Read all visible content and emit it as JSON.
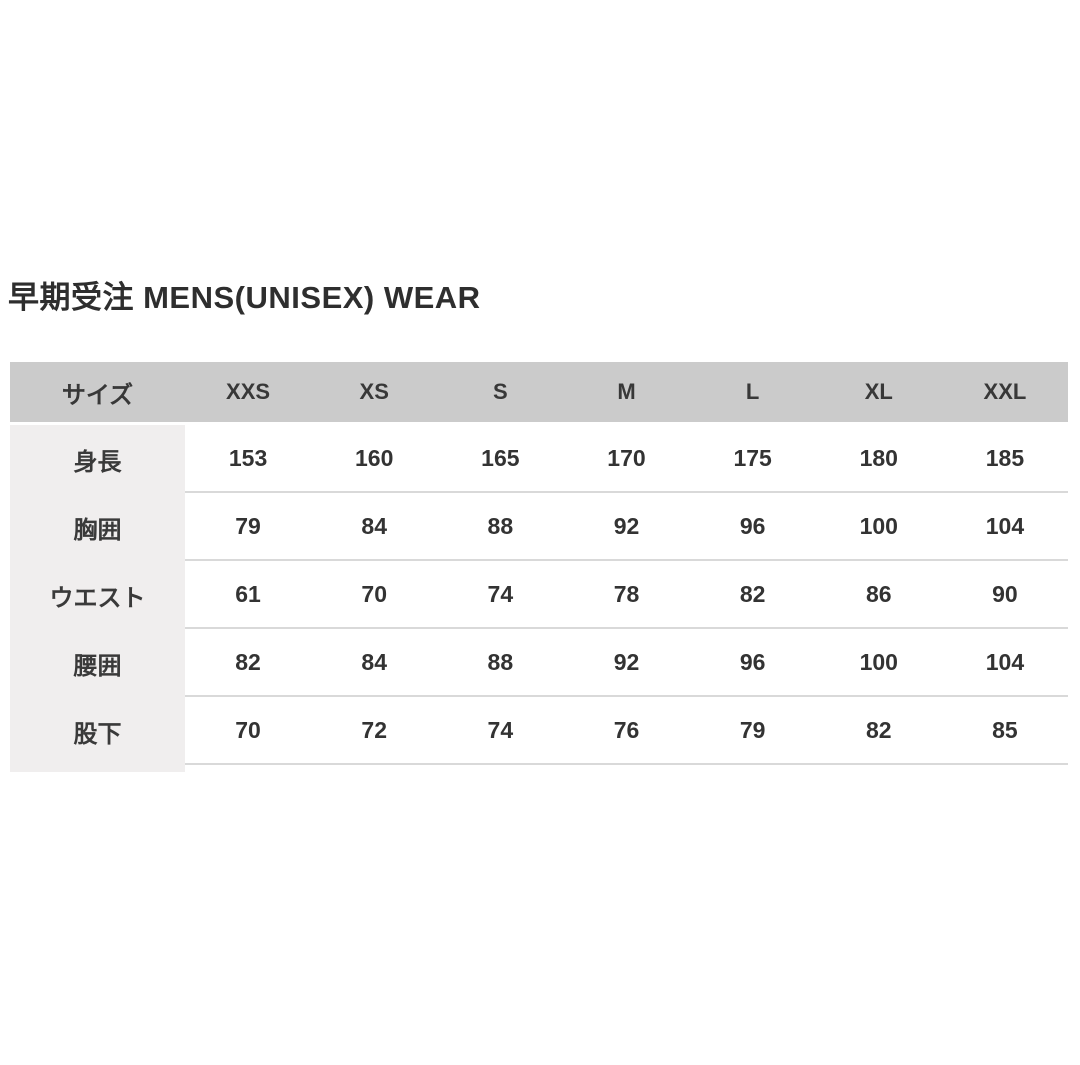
{
  "page": {
    "title": "早期受注 MENS(UNISEX) WEAR"
  },
  "colors": {
    "header_bg": "#cbcbcb",
    "label_column_bg": "#f0eeee",
    "row_divider": "#d9d9d9",
    "text": "#333333",
    "background": "#ffffff"
  },
  "chart_data": {
    "type": "table",
    "title": "早期受注 MENS(UNISEX) WEAR",
    "columns": [
      "サイズ",
      "XXS",
      "XS",
      "S",
      "M",
      "L",
      "XL",
      "XXL"
    ],
    "rows": [
      {
        "label": "身長",
        "values": [
          "153",
          "160",
          "165",
          "170",
          "175",
          "180",
          "185"
        ]
      },
      {
        "label": "胸囲",
        "values": [
          "79",
          "84",
          "88",
          "92",
          "96",
          "100",
          "104"
        ]
      },
      {
        "label": "ウエスト",
        "values": [
          "61",
          "70",
          "74",
          "78",
          "82",
          "86",
          "90"
        ]
      },
      {
        "label": "腰囲",
        "values": [
          "82",
          "84",
          "88",
          "92",
          "96",
          "100",
          "104"
        ]
      },
      {
        "label": "股下",
        "values": [
          "70",
          "72",
          "74",
          "76",
          "79",
          "82",
          "85"
        ]
      }
    ]
  }
}
